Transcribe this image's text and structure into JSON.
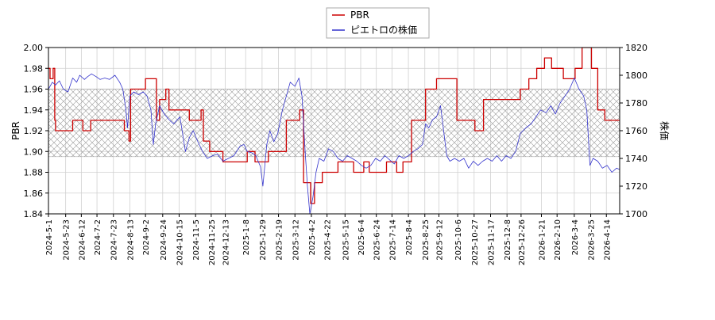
{
  "chart_data": {
    "type": "line",
    "title": "",
    "legend": {
      "placement": "top-center",
      "entries": [
        {
          "name": "PBR",
          "color": "#cc0000"
        },
        {
          "name": "ピエトロの株価",
          "color": "#3333cc"
        }
      ]
    },
    "x_axis": {
      "type": "date",
      "range": [
        "2024-05-01",
        "2026-05-01"
      ],
      "tick_labels": [
        "2024-5-1",
        "2024-5-23",
        "2024-6-12",
        "2024-7-2",
        "2024-7-23",
        "2024-8-13",
        "2024-9-2",
        "2024-9-24",
        "2024-10-15",
        "2024-11-5",
        "2024-11-25",
        "2024-12-13",
        "2025-1-8",
        "2025-1-29",
        "2025-2-19",
        "2025-3-12",
        "2025-4-2",
        "2025-4-22",
        "2025-5-15",
        "2025-6-4",
        "2025-6-24",
        "2025-7-14",
        "2025-8-4",
        "2025-8-25",
        "2025-9-12",
        "2025-10-6",
        "2025-10-27",
        "2025-11-17",
        "2025-12-8",
        "2025-12-26",
        "2026-1-21",
        "2026-2-10",
        "2026-3-4",
        "2026-3-25",
        "2026-4-14"
      ]
    },
    "y_left": {
      "label": "PBR",
      "range": [
        1.84,
        2.0
      ],
      "ticks": [
        "1.84",
        "1.86",
        "1.88",
        "1.90",
        "1.92",
        "1.94",
        "1.96",
        "1.98",
        "2.00"
      ]
    },
    "y_right": {
      "label": "株価",
      "range": [
        1700,
        1820
      ],
      "ticks": [
        "1700",
        "1720",
        "1740",
        "1760",
        "1780",
        "1800",
        "1820"
      ]
    },
    "grid": true,
    "band": {
      "from": 1.895,
      "to": 1.96,
      "pattern": "crosshatch"
    },
    "series": [
      {
        "name": "PBR",
        "axis": "left",
        "color": "#cc0000",
        "step": true,
        "points": [
          [
            "2024-05-01",
            1.98
          ],
          [
            "2024-05-03",
            1.97
          ],
          [
            "2024-05-07",
            1.98
          ],
          [
            "2024-05-09",
            1.93
          ],
          [
            "2024-05-10",
            1.92
          ],
          [
            "2024-06-01",
            1.93
          ],
          [
            "2024-06-14",
            1.92
          ],
          [
            "2024-06-24",
            1.93
          ],
          [
            "2024-08-06",
            1.92
          ],
          [
            "2024-08-12",
            1.91
          ],
          [
            "2024-08-14",
            1.96
          ],
          [
            "2024-09-02",
            1.97
          ],
          [
            "2024-09-16",
            1.93
          ],
          [
            "2024-09-20",
            1.95
          ],
          [
            "2024-09-28",
            1.96
          ],
          [
            "2024-10-02",
            1.94
          ],
          [
            "2024-10-28",
            1.93
          ],
          [
            "2024-11-12",
            1.94
          ],
          [
            "2024-11-15",
            1.91
          ],
          [
            "2024-11-23",
            1.9
          ],
          [
            "2024-12-10",
            1.89
          ],
          [
            "2025-01-01",
            1.89
          ],
          [
            "2025-01-10",
            1.9
          ],
          [
            "2025-01-20",
            1.89
          ],
          [
            "2025-02-06",
            1.9
          ],
          [
            "2025-03-01",
            1.93
          ],
          [
            "2025-03-18",
            1.94
          ],
          [
            "2025-03-23",
            1.87
          ],
          [
            "2025-04-01",
            1.85
          ],
          [
            "2025-04-06",
            1.87
          ],
          [
            "2025-04-16",
            1.88
          ],
          [
            "2025-05-06",
            1.89
          ],
          [
            "2025-05-26",
            1.88
          ],
          [
            "2025-06-08",
            1.89
          ],
          [
            "2025-06-15",
            1.88
          ],
          [
            "2025-07-07",
            1.89
          ],
          [
            "2025-07-20",
            1.88
          ],
          [
            "2025-07-28",
            1.89
          ],
          [
            "2025-08-08",
            1.93
          ],
          [
            "2025-08-26",
            1.96
          ],
          [
            "2025-09-09",
            1.97
          ],
          [
            "2025-10-05",
            1.93
          ],
          [
            "2025-10-28",
            1.92
          ],
          [
            "2025-11-08",
            1.95
          ],
          [
            "2025-12-25",
            1.96
          ],
          [
            "2026-01-05",
            1.97
          ],
          [
            "2026-01-15",
            1.98
          ],
          [
            "2026-01-25",
            1.99
          ],
          [
            "2026-02-03",
            1.98
          ],
          [
            "2026-02-18",
            1.97
          ],
          [
            "2026-03-05",
            1.98
          ],
          [
            "2026-03-14",
            2.0
          ],
          [
            "2026-03-26",
            1.98
          ],
          [
            "2026-04-03",
            1.94
          ],
          [
            "2026-04-12",
            1.93
          ],
          [
            "2026-05-01",
            1.93
          ]
        ]
      },
      {
        "name": "ピエトロの株価",
        "axis": "right",
        "color": "#3333cc",
        "step": false,
        "points": [
          [
            "2024-05-01",
            1790
          ],
          [
            "2024-05-06",
            1795
          ],
          [
            "2024-05-10",
            1793
          ],
          [
            "2024-05-15",
            1796
          ],
          [
            "2024-05-20",
            1790
          ],
          [
            "2024-05-26",
            1788
          ],
          [
            "2024-06-01",
            1798
          ],
          [
            "2024-06-06",
            1795
          ],
          [
            "2024-06-10",
            1800
          ],
          [
            "2024-06-16",
            1797
          ],
          [
            "2024-06-20",
            1799
          ],
          [
            "2024-06-25",
            1801
          ],
          [
            "2024-07-01",
            1799
          ],
          [
            "2024-07-06",
            1797
          ],
          [
            "2024-07-12",
            1798
          ],
          [
            "2024-07-18",
            1797
          ],
          [
            "2024-07-25",
            1800
          ],
          [
            "2024-07-31",
            1795
          ],
          [
            "2024-08-04",
            1790
          ],
          [
            "2024-08-08",
            1775
          ],
          [
            "2024-08-10",
            1762
          ],
          [
            "2024-08-13",
            1785
          ],
          [
            "2024-08-18",
            1788
          ],
          [
            "2024-08-24",
            1786
          ],
          [
            "2024-08-30",
            1788
          ],
          [
            "2024-09-04",
            1785
          ],
          [
            "2024-09-09",
            1775
          ],
          [
            "2024-09-12",
            1750
          ],
          [
            "2024-09-15",
            1765
          ],
          [
            "2024-09-20",
            1778
          ],
          [
            "2024-09-26",
            1772
          ],
          [
            "2024-10-02",
            1768
          ],
          [
            "2024-10-08",
            1765
          ],
          [
            "2024-10-16",
            1770
          ],
          [
            "2024-10-23",
            1745
          ],
          [
            "2024-10-28",
            1755
          ],
          [
            "2024-11-02",
            1760
          ],
          [
            "2024-11-08",
            1752
          ],
          [
            "2024-11-14",
            1745
          ],
          [
            "2024-11-20",
            1740
          ],
          [
            "2024-11-27",
            1742
          ],
          [
            "2024-12-03",
            1743
          ],
          [
            "2024-12-10",
            1738
          ],
          [
            "2024-12-17",
            1740
          ],
          [
            "2024-12-24",
            1742
          ],
          [
            "2025-01-01",
            1749
          ],
          [
            "2025-01-06",
            1750
          ],
          [
            "2025-01-10",
            1745
          ],
          [
            "2025-01-16",
            1744
          ],
          [
            "2025-01-21",
            1742
          ],
          [
            "2025-01-27",
            1734
          ],
          [
            "2025-01-30",
            1720
          ],
          [
            "2025-02-04",
            1750
          ],
          [
            "2025-02-08",
            1760
          ],
          [
            "2025-02-13",
            1752
          ],
          [
            "2025-02-18",
            1758
          ],
          [
            "2025-02-24",
            1775
          ],
          [
            "2025-03-01",
            1785
          ],
          [
            "2025-03-06",
            1795
          ],
          [
            "2025-03-12",
            1792
          ],
          [
            "2025-03-17",
            1798
          ],
          [
            "2025-03-21",
            1785
          ],
          [
            "2025-03-25",
            1745
          ],
          [
            "2025-03-28",
            1720
          ],
          [
            "2025-03-31",
            1700
          ],
          [
            "2025-04-04",
            1712
          ],
          [
            "2025-04-08",
            1730
          ],
          [
            "2025-04-12",
            1740
          ],
          [
            "2025-04-18",
            1738
          ],
          [
            "2025-04-24",
            1747
          ],
          [
            "2025-04-30",
            1745
          ],
          [
            "2025-05-06",
            1740
          ],
          [
            "2025-05-12",
            1738
          ],
          [
            "2025-05-18",
            1742
          ],
          [
            "2025-05-24",
            1740
          ],
          [
            "2025-05-30",
            1738
          ],
          [
            "2025-06-05",
            1735
          ],
          [
            "2025-06-11",
            1733
          ],
          [
            "2025-06-17",
            1735
          ],
          [
            "2025-06-23",
            1740
          ],
          [
            "2025-06-29",
            1738
          ],
          [
            "2025-07-05",
            1742
          ],
          [
            "2025-07-11",
            1739
          ],
          [
            "2025-07-17",
            1736
          ],
          [
            "2025-07-23",
            1742
          ],
          [
            "2025-07-29",
            1740
          ],
          [
            "2025-08-04",
            1742
          ],
          [
            "2025-08-10",
            1745
          ],
          [
            "2025-08-16",
            1747
          ],
          [
            "2025-08-22",
            1750
          ],
          [
            "2025-08-26",
            1765
          ],
          [
            "2025-08-30",
            1762
          ],
          [
            "2025-09-04",
            1768
          ],
          [
            "2025-09-09",
            1770
          ],
          [
            "2025-09-14",
            1778
          ],
          [
            "2025-09-18",
            1760
          ],
          [
            "2025-09-22",
            1742
          ],
          [
            "2025-09-26",
            1738
          ],
          [
            "2025-10-02",
            1740
          ],
          [
            "2025-10-08",
            1738
          ],
          [
            "2025-10-14",
            1740
          ],
          [
            "2025-10-20",
            1733
          ],
          [
            "2025-10-26",
            1738
          ],
          [
            "2025-11-01",
            1735
          ],
          [
            "2025-11-07",
            1738
          ],
          [
            "2025-11-13",
            1740
          ],
          [
            "2025-11-19",
            1738
          ],
          [
            "2025-11-25",
            1742
          ],
          [
            "2025-12-01",
            1738
          ],
          [
            "2025-12-07",
            1742
          ],
          [
            "2025-12-13",
            1740
          ],
          [
            "2025-12-19",
            1745
          ],
          [
            "2025-12-25",
            1758
          ],
          [
            "2026-01-01",
            1762
          ],
          [
            "2026-01-08",
            1765
          ],
          [
            "2026-01-14",
            1770
          ],
          [
            "2026-01-20",
            1775
          ],
          [
            "2026-01-27",
            1773
          ],
          [
            "2026-02-02",
            1778
          ],
          [
            "2026-02-08",
            1772
          ],
          [
            "2026-02-14",
            1780
          ],
          [
            "2026-02-20",
            1785
          ],
          [
            "2026-02-26",
            1790
          ],
          [
            "2026-03-04",
            1798
          ],
          [
            "2026-03-10",
            1790
          ],
          [
            "2026-03-16",
            1785
          ],
          [
            "2026-03-20",
            1775
          ],
          [
            "2026-03-24",
            1735
          ],
          [
            "2026-03-28",
            1740
          ],
          [
            "2026-04-03",
            1738
          ],
          [
            "2026-04-09",
            1733
          ],
          [
            "2026-04-15",
            1735
          ],
          [
            "2026-04-21",
            1730
          ],
          [
            "2026-04-27",
            1733
          ],
          [
            "2026-05-01",
            1732
          ]
        ]
      }
    ]
  }
}
